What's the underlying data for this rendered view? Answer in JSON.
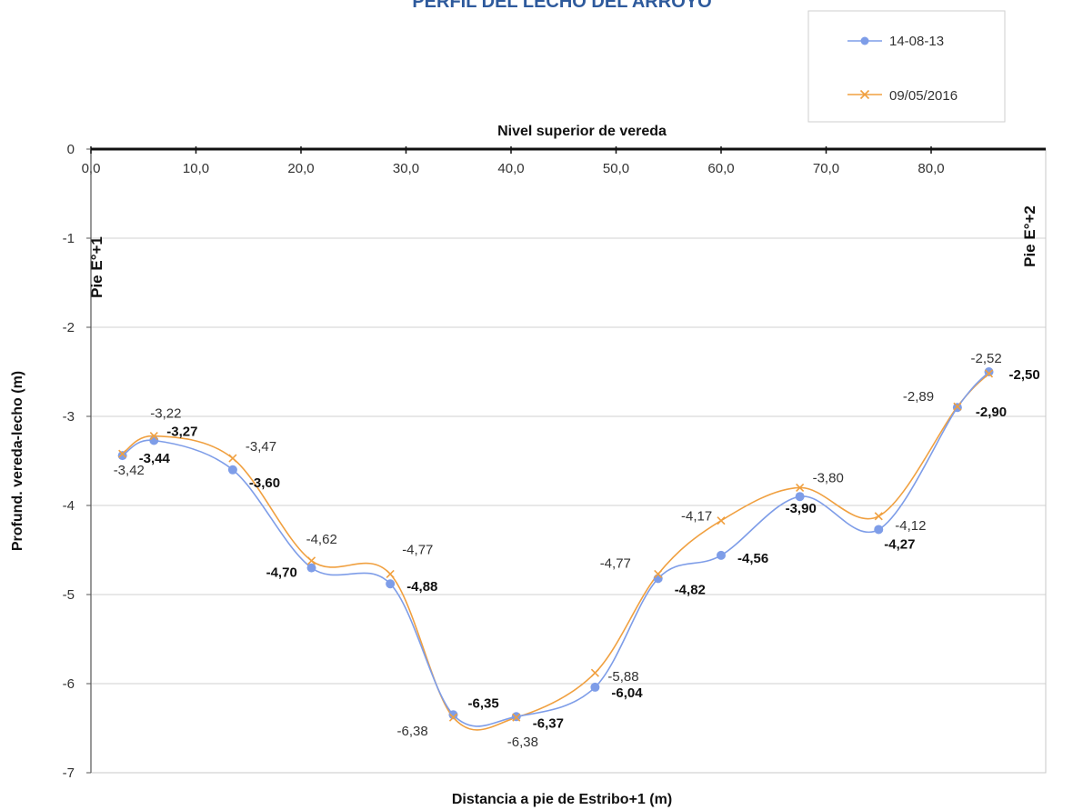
{
  "chart_data": {
    "type": "line",
    "title": "PERFIL DEL LECHO DEL ARROYO",
    "top_axis_label": "Nivel superior de vereda",
    "xlabel": "Distancia a pie de Estribo+1 (m)",
    "ylabel": "Profund. vereda-lecho (m)",
    "xlim": [
      0,
      90
    ],
    "ylim": [
      -7,
      0
    ],
    "x_ticks": [
      "0,0",
      "10,0",
      "20,0",
      "30,0",
      "40,0",
      "50,0",
      "60,0",
      "70,0",
      "80,0"
    ],
    "y_ticks": [
      "0",
      "-1",
      "-2",
      "-3",
      "-4",
      "-5",
      "-6",
      "-7"
    ],
    "edge_labels": [
      "Pie E°+1",
      "Pie E°+2"
    ],
    "grid": true,
    "legend_position": "top-right",
    "series": [
      {
        "name": "14-08-13",
        "color": "#7e9de8",
        "marker": "circle",
        "x": [
          3.0,
          6.0,
          13.5,
          21.0,
          28.5,
          34.5,
          40.5,
          48.0,
          54.0,
          60.0,
          67.5,
          75.0,
          82.5,
          85.5
        ],
        "y": [
          -3.44,
          -3.27,
          -3.6,
          -4.7,
          -4.88,
          -6.35,
          -6.37,
          -6.04,
          -4.82,
          -4.56,
          -3.9,
          -4.27,
          -2.9,
          -2.5
        ],
        "labels": [
          "-3,44",
          "-3,27",
          "-3,60",
          "-4,70",
          "-4,88",
          "-6,35",
          "-6,37",
          "-6,04",
          "-4,82",
          "-4,56",
          "-3,90",
          "-4,27",
          "-2,90",
          "-2,50"
        ]
      },
      {
        "name": "09/05/2016",
        "color": "#f0a040",
        "marker": "x",
        "x": [
          3.0,
          6.0,
          13.5,
          21.0,
          28.5,
          34.5,
          40.5,
          48.0,
          54.0,
          60.0,
          67.5,
          75.0,
          82.5,
          85.5
        ],
        "y": [
          -3.42,
          -3.22,
          -3.47,
          -4.62,
          -4.77,
          -6.38,
          -6.38,
          -5.88,
          -4.77,
          -4.17,
          -3.8,
          -4.12,
          -2.89,
          -2.52
        ],
        "labels": [
          "-3,42",
          "-3,22",
          "-3,47",
          "-4,62",
          "-4,77",
          "-6,38",
          "-6,38",
          "-5,88",
          "-4,77",
          "-4,17",
          "-3,80",
          "-4,12",
          "-2,89",
          "-2,52"
        ]
      }
    ]
  }
}
